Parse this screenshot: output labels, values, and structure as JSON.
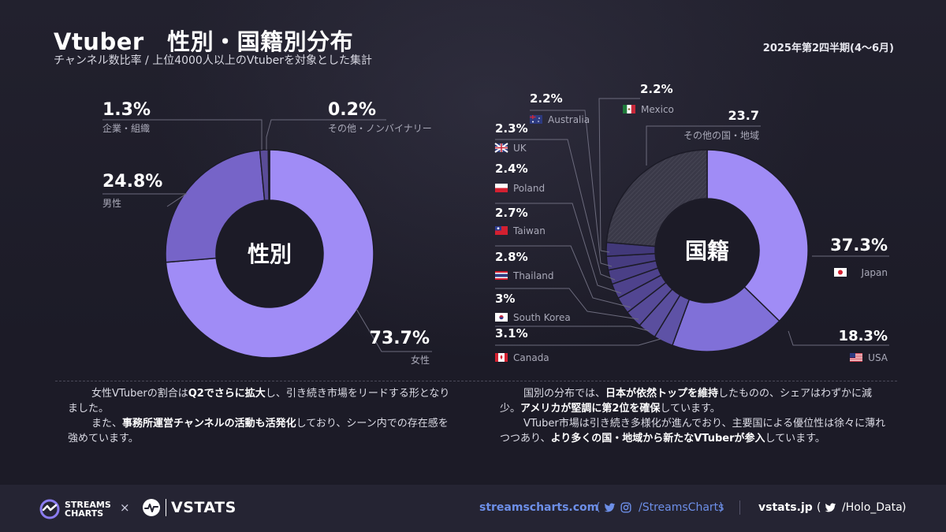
{
  "header": {
    "title": "Vtuber　性別・国籍別分布",
    "subtitle": "チャンネル数比率 / 上位4000人以上のVtuberを対象とした集計",
    "period": "2025年第2四半期(4〜6月)"
  },
  "colors": {
    "background": "#1c1b27",
    "female": "#a08cf6",
    "male": "#7664c8",
    "corporate": "#5a4c98",
    "other_gender": "#3d3560",
    "japan": "#a08cf6",
    "usa": "#8070d8",
    "minor_countries": "#4f4490",
    "other_regions": "#3c3a4e",
    "link_blue": "#6d8fe8"
  },
  "chart_data": [
    {
      "type": "pie",
      "variant": "donut",
      "center_label": "性別",
      "slices": [
        {
          "label": "女性",
          "value": 73.7,
          "display": "73.7%",
          "color": "#a08cf6"
        },
        {
          "label": "男性",
          "value": 24.8,
          "display": "24.8%",
          "color": "#7664c8"
        },
        {
          "label": "企業・組織",
          "value": 1.3,
          "display": "1.3%",
          "color": "#5a4c98"
        },
        {
          "label": "その他・ノンバイナリー",
          "value": 0.2,
          "display": "0.2%",
          "color": "#3d3560"
        }
      ]
    },
    {
      "type": "pie",
      "variant": "donut",
      "center_label": "国籍",
      "slices": [
        {
          "label": "Japan",
          "value": 37.3,
          "display": "37.3%",
          "flag": "japan-flag-icon",
          "color": "#a08cf6"
        },
        {
          "label": "USA",
          "value": 18.3,
          "display": "18.3%",
          "flag": "usa-flag-icon",
          "color": "#8070d8"
        },
        {
          "label": "Canada",
          "value": 3.1,
          "display": "3.1%",
          "flag": "canada-flag-icon",
          "color": "#5e52a6"
        },
        {
          "label": "South Korea",
          "value": 3.0,
          "display": "3%",
          "flag": "south-korea-flag-icon",
          "color": "#5a4e9e"
        },
        {
          "label": "Thailand",
          "value": 2.8,
          "display": "2.8%",
          "flag": "thailand-flag-icon",
          "color": "#564a98"
        },
        {
          "label": "Taiwan",
          "value": 2.7,
          "display": "2.7%",
          "flag": "taiwan-flag-icon",
          "color": "#524692"
        },
        {
          "label": "Poland",
          "value": 2.4,
          "display": "2.4%",
          "flag": "poland-flag-icon",
          "color": "#4e428c"
        },
        {
          "label": "UK",
          "value": 2.3,
          "display": "2.3%",
          "flag": "uk-flag-icon",
          "color": "#4a3f86"
        },
        {
          "label": "Australia",
          "value": 2.2,
          "display": "2.2%",
          "flag": "australia-flag-icon",
          "color": "#463c80"
        },
        {
          "label": "Mexico",
          "value": 2.2,
          "display": "2.2%",
          "flag": "mexico-flag-icon",
          "color": "#42397a"
        },
        {
          "label": "その他の国・地域",
          "value": 23.7,
          "display": "23.7",
          "color": "#3c3a4e"
        }
      ]
    }
  ],
  "commentary": {
    "left": [
      [
        {
          "t": "女性VTuberの割合は"
        },
        {
          "t": "Q2でさらに拡大",
          "b": true
        },
        {
          "t": "し、引き続き市場をリードする形となりました。"
        }
      ],
      [
        {
          "t": "また、"
        },
        {
          "t": "事務所運営チャンネルの活動も活発化",
          "b": true
        },
        {
          "t": "しており、シーン内での存在感を強めています。"
        }
      ]
    ],
    "right": [
      [
        {
          "t": "国別の分布では、"
        },
        {
          "t": "日本が依然トップを維持",
          "b": true
        },
        {
          "t": "したものの、シェアはわずかに減少。"
        },
        {
          "t": "アメリカが堅調に第2位を確保",
          "b": true
        },
        {
          "t": "しています。"
        }
      ],
      [
        {
          "t": "VTuber市場は引き続き多様化が進んでおり、主要国による優位性は徐々に薄れつつあり、"
        },
        {
          "t": "より多くの国・地域から新たなVTuberが参入",
          "b": true
        },
        {
          "t": "しています。"
        }
      ]
    ]
  },
  "footer": {
    "logo1_line1": "STREAMS",
    "logo1_line2": "CHARTS",
    "times": "×",
    "logo2": "VSTATS",
    "site1": "streamscharts.com",
    "handle1": "/StreamsCharts",
    "site2": "vstats.jp",
    "handle2": "/Holo_Data",
    "paren_open": "(",
    "paren_close": ")"
  }
}
